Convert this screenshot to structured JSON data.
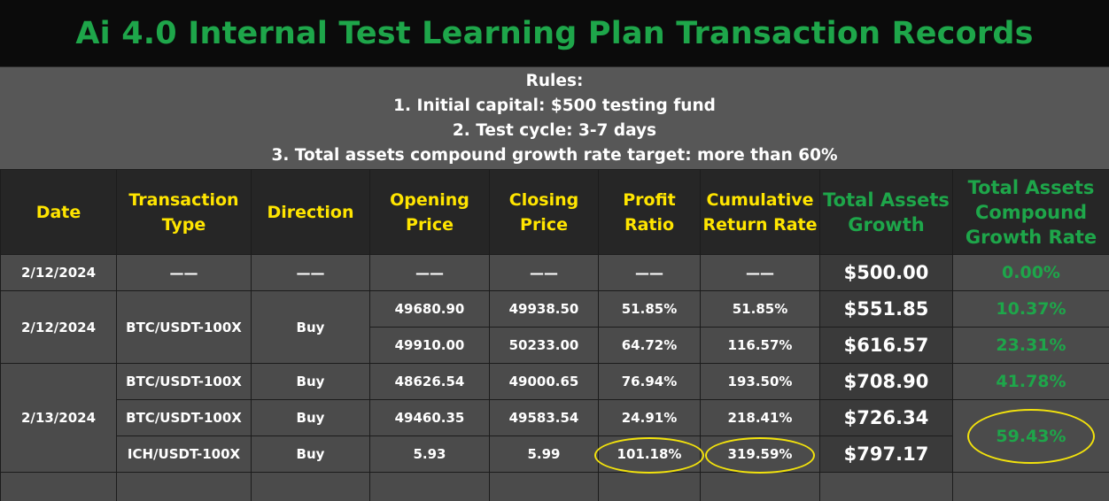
{
  "title": "Ai 4.0 Internal Test Learning Plan Transaction Records",
  "rules": {
    "heading": "Rules:",
    "items": [
      "1. Initial capital: $500 testing fund",
      "2. Test cycle: 3-7 days",
      "3. Total assets compound growth rate target: more than 60%"
    ]
  },
  "table": {
    "headers": {
      "date": "Date",
      "type": "Transaction Type",
      "direction": "Direction",
      "opening": "Opening Price",
      "closing": "Closing Price",
      "profit": "Profit Ratio",
      "cumulative": "Cumulative Return Rate",
      "assets": "Total Assets Growth",
      "compound": "Total Assets Compound Growth Rate"
    },
    "placeholder": "——",
    "groups": [
      {
        "date": "2/12/2024",
        "type": "",
        "direction": ""
      },
      {
        "date": "2/12/2024",
        "type": "BTC/USDT-100X",
        "direction": "Buy"
      },
      {
        "date": "2/13/2024"
      }
    ],
    "rows": [
      {
        "opening": "",
        "closing": "",
        "profit": "",
        "cumulative": "",
        "assets": "$500.00",
        "compound": "0.00%"
      },
      {
        "opening": "49680.90",
        "closing": "49938.50",
        "profit": "51.85%",
        "cumulative": "51.85%",
        "assets": "$551.85",
        "compound": "10.37%"
      },
      {
        "opening": "49910.00",
        "closing": "50233.00",
        "profit": "64.72%",
        "cumulative": "116.57%",
        "assets": "$616.57",
        "compound": "23.31%"
      },
      {
        "type": "BTC/USDT-100X",
        "direction": "Buy",
        "opening": "48626.54",
        "closing": "49000.65",
        "profit": "76.94%",
        "cumulative": "193.50%",
        "assets": "$708.90",
        "compound": "41.78%"
      },
      {
        "type": "BTC/USDT-100X",
        "direction": "Buy",
        "opening": "49460.35",
        "closing": "49583.54",
        "profit": "24.91%",
        "cumulative": "218.41%",
        "assets": "$726.34",
        "compound": "59.43%"
      },
      {
        "type": "ICH/USDT-100X",
        "direction": "Buy",
        "opening": "5.93",
        "closing": "5.99",
        "profit": "101.18%",
        "cumulative": "319.59%",
        "assets": "$797.17"
      }
    ]
  },
  "colors": {
    "title_green": "#1ea64a",
    "header_yellow": "#ffe500",
    "highlight_circle": "#f2e20c"
  }
}
